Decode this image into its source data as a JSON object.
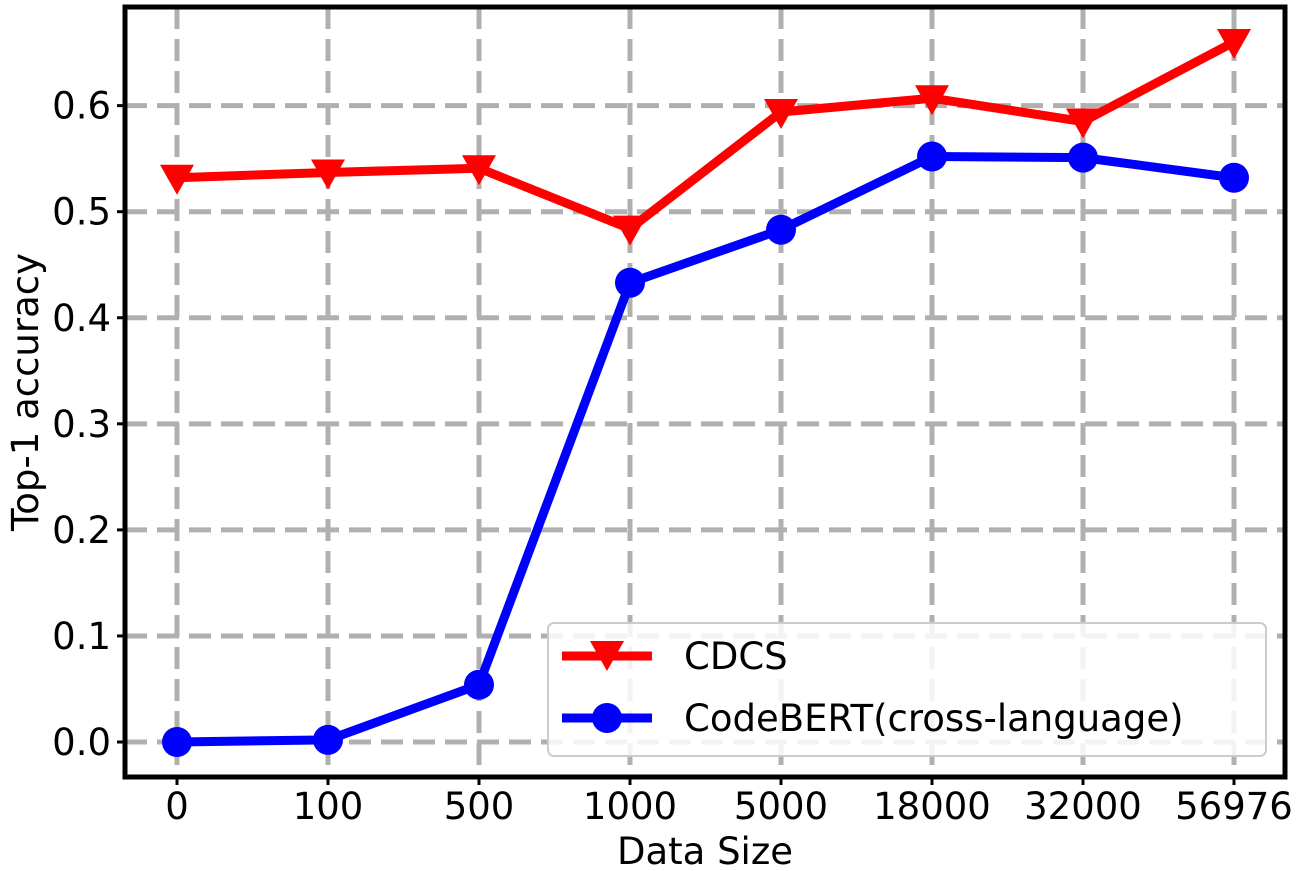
{
  "chart_data": {
    "type": "line",
    "categories": [
      "0",
      "100",
      "500",
      "1000",
      "5000",
      "18000",
      "32000",
      "56976"
    ],
    "series": [
      {
        "name": "CDCS",
        "values": [
          0.532,
          0.537,
          0.541,
          0.484,
          0.594,
          0.607,
          0.585,
          0.66
        ],
        "color": "#ff0000",
        "marker": "triangle-down"
      },
      {
        "name": "CodeBERT(cross-language)",
        "values": [
          0.0,
          0.002,
          0.054,
          0.433,
          0.483,
          0.552,
          0.551,
          0.532
        ],
        "color": "#0000ff",
        "marker": "circle"
      }
    ],
    "xlabel": "Data Size",
    "ylabel": "Top-1 accuracy",
    "ylim": [
      -0.033,
      0.693
    ],
    "yticks": [
      "0.0",
      "0.1",
      "0.2",
      "0.3",
      "0.4",
      "0.5",
      "0.6"
    ],
    "grid": true,
    "legend_position": "lower-right"
  }
}
